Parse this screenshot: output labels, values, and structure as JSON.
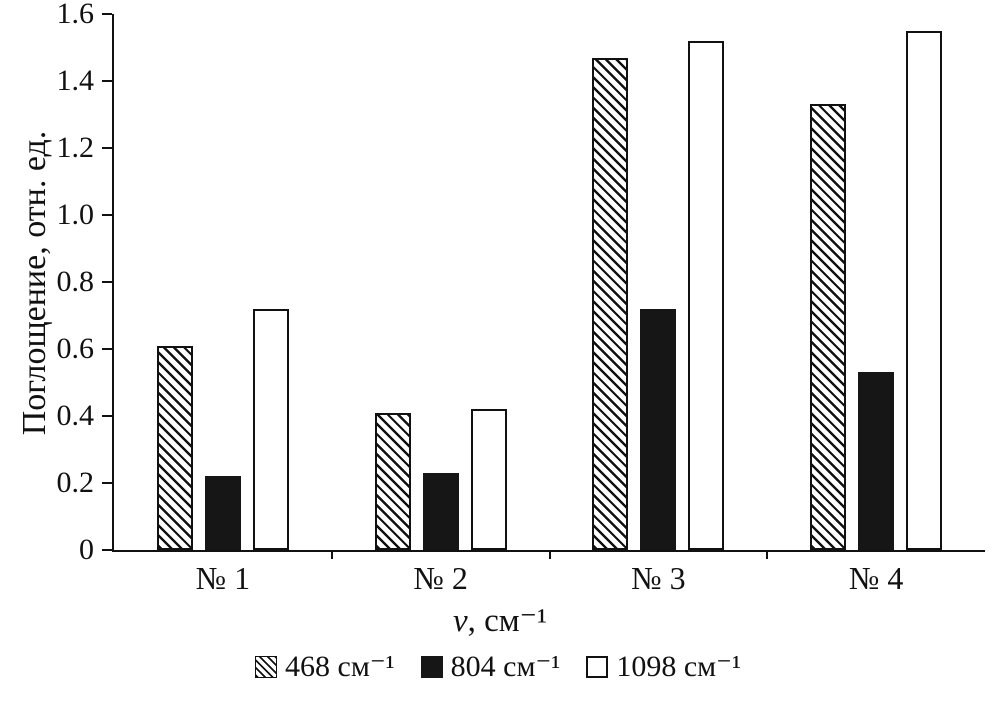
{
  "chart_data": {
    "type": "bar",
    "title": "",
    "categories": [
      "№ 1",
      "№ 2",
      "№ 3",
      "№ 4"
    ],
    "series": [
      {
        "key": "468",
        "name": "468 см⁻¹",
        "pattern": "hatched",
        "values": [
          0.61,
          0.41,
          1.47,
          1.33
        ]
      },
      {
        "key": "804",
        "name": "804 см⁻¹",
        "pattern": "solid-black",
        "values": [
          0.22,
          0.23,
          0.72,
          0.53
        ]
      },
      {
        "key": "1098",
        "name": "1098 см⁻¹",
        "pattern": "white",
        "values": [
          0.72,
          0.42,
          1.52,
          1.55
        ]
      }
    ],
    "ylabel": "Поглощение, отн. ед.",
    "xlabel_symbol": "ν",
    "xlabel_rest": ", см⁻¹",
    "ylim": [
      0,
      1.6
    ],
    "yticks": [
      "0",
      "0.2",
      "0.4",
      "0.6",
      "0.8",
      "1.0",
      "1.2",
      "1.4",
      "1.6"
    ],
    "grid": false,
    "legend_position": "bottom",
    "colors": {
      "ink": "#111111",
      "bar_black": "#161616",
      "bar_white": "#ffffff",
      "background": "#ffffff"
    }
  }
}
